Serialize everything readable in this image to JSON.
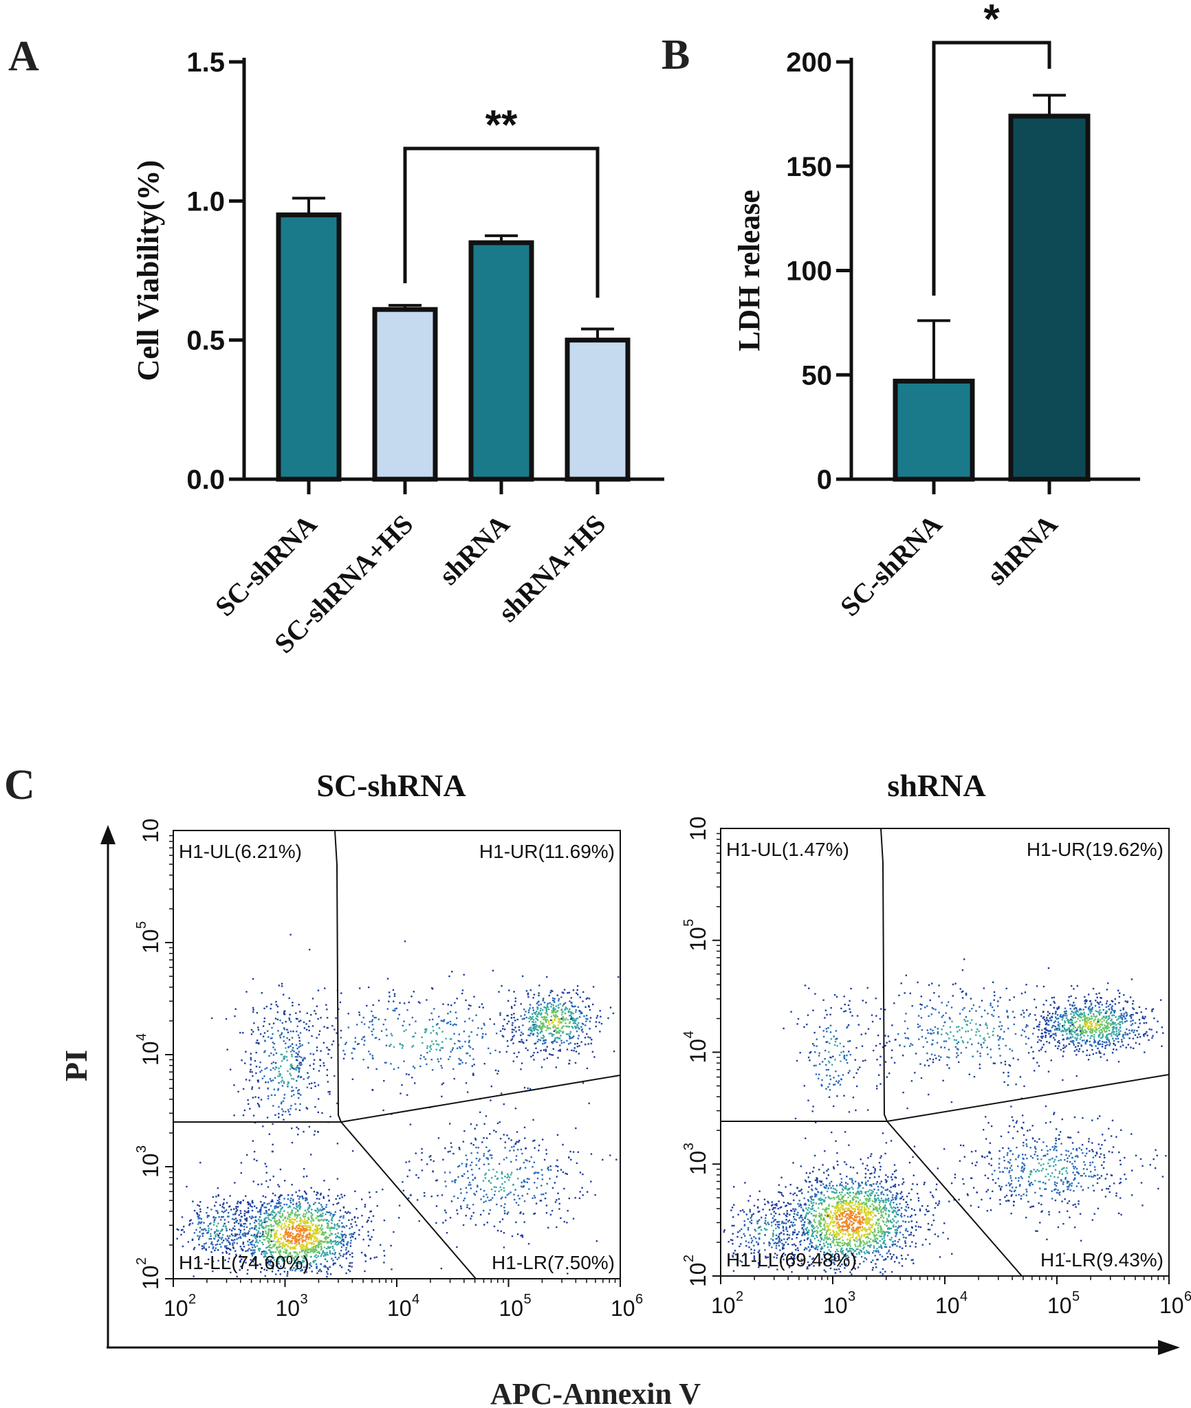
{
  "chart_data": [
    {
      "panel_label": "A",
      "type": "bar",
      "ylabel": "Cell Viability(%)",
      "xlabel": "",
      "ylim": [
        0,
        1.5
      ],
      "yticks": [
        "0.0",
        "0.5",
        "1.0",
        "1.5"
      ],
      "categories": [
        "SC-shRNA",
        "SC-shRNA+HS",
        "shRNA",
        "shRNA+HS"
      ],
      "values": [
        0.95,
        0.61,
        0.85,
        0.5
      ],
      "errors": [
        0.06,
        0.015,
        0.025,
        0.04
      ],
      "colors": [
        "#1a7a8a",
        "#c5d9ef",
        "#1a7a8a",
        "#c5d9ef"
      ],
      "significance": {
        "from": 1,
        "to": 3,
        "label": "**"
      }
    },
    {
      "panel_label": "B",
      "type": "bar",
      "ylabel": "LDH release",
      "xlabel": "",
      "ylim": [
        0,
        200
      ],
      "yticks": [
        "0",
        "50",
        "100",
        "150",
        "200"
      ],
      "categories": [
        "SC-shRNA",
        "shRNA"
      ],
      "values": [
        47,
        174
      ],
      "errors": [
        29,
        10
      ],
      "colors": [
        "#1a7a8a",
        "#0e4a56"
      ],
      "significance": {
        "from": 0,
        "to": 1,
        "label": "*"
      }
    },
    {
      "panel_label": "C",
      "type": "scatter",
      "xlabel": "APC-Annexin V",
      "ylabel": "PI",
      "x_tick_exponents": [
        "2",
        "3",
        "4",
        "5",
        "6"
      ],
      "y_tick_exponents": [
        "2",
        "3",
        "4",
        "5"
      ],
      "y_top_label": "10",
      "tick_base": "10",
      "plots": [
        {
          "title": "SC-shRNA",
          "quadrants": {
            "ul": "H1-UL(6.21%)",
            "ur": "H1-UR(11.69%)",
            "ll": "H1-LL(74.60%)",
            "lr": "H1-LR(7.50%)"
          }
        },
        {
          "title": "shRNA",
          "quadrants": {
            "ul": "H1-UL(1.47%)",
            "ur": "H1-UR(19.62%)",
            "ll": "H1-LL(69.48%)",
            "lr": "H1-LR(9.43%)"
          }
        }
      ]
    }
  ]
}
